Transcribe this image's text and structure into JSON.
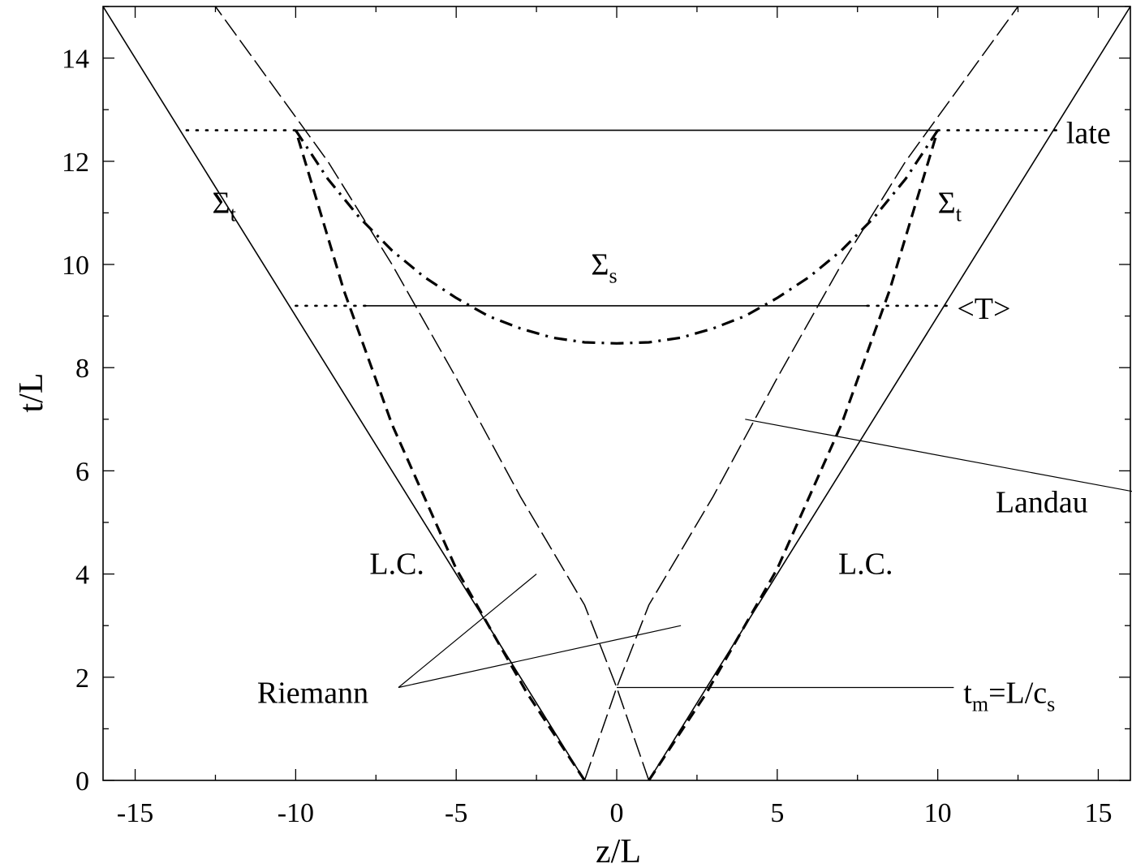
{
  "chart_data": {
    "type": "line",
    "xlabel": "z/L",
    "ylabel": "t/L",
    "xlim": [
      -16,
      16
    ],
    "ylim": [
      0,
      15
    ],
    "xticks": [
      -15,
      -10,
      -5,
      0,
      5,
      10,
      15
    ],
    "yticks": [
      0,
      2,
      4,
      6,
      8,
      10,
      12,
      14
    ],
    "grid": false,
    "series": [
      {
        "id": "lc-left",
        "style": "solid",
        "points": [
          [
            -1,
            0
          ],
          [
            -16,
            15
          ]
        ]
      },
      {
        "id": "lc-right",
        "style": "solid",
        "points": [
          [
            1,
            0
          ],
          [
            16,
            15
          ]
        ]
      },
      {
        "id": "riemann-left-bold",
        "style": "bold-dashed",
        "points": [
          [
            -1,
            0
          ],
          [
            -2.8,
            1.7
          ],
          [
            -5,
            4.1
          ],
          [
            -7,
            6.9
          ],
          [
            -8.5,
            9.5
          ],
          [
            -10,
            12.6
          ]
        ]
      },
      {
        "id": "riemann-right-bold",
        "style": "bold-dashed",
        "points": [
          [
            1,
            0
          ],
          [
            2.8,
            1.7
          ],
          [
            5,
            4.1
          ],
          [
            7,
            6.9
          ],
          [
            8.5,
            9.5
          ],
          [
            10,
            12.6
          ]
        ]
      },
      {
        "id": "landau-left",
        "style": "dashed",
        "points": [
          [
            1,
            0
          ],
          [
            0,
            1.8
          ],
          [
            -1,
            3.4
          ],
          [
            -3,
            5.5
          ],
          [
            -5,
            7.8
          ],
          [
            -7,
            10
          ],
          [
            -9,
            12
          ],
          [
            -12.5,
            15
          ]
        ]
      },
      {
        "id": "landau-right",
        "style": "dashed",
        "points": [
          [
            -1,
            0
          ],
          [
            0,
            1.8
          ],
          [
            1,
            3.4
          ],
          [
            3,
            5.5
          ],
          [
            5,
            7.8
          ],
          [
            7,
            10
          ],
          [
            9,
            12
          ],
          [
            12.5,
            15
          ]
        ]
      },
      {
        "id": "sigma-s",
        "style": "dash-dot",
        "points": [
          [
            -10,
            12.6
          ],
          [
            -9,
            11.66
          ],
          [
            -8,
            10.9
          ],
          [
            -7,
            10.27
          ],
          [
            -6,
            9.76
          ],
          [
            -5,
            9.35
          ],
          [
            -4,
            9.0
          ],
          [
            -3,
            8.76
          ],
          [
            -2,
            8.58
          ],
          [
            -1,
            8.49
          ],
          [
            0,
            8.47
          ],
          [
            1,
            8.49
          ],
          [
            2,
            8.58
          ],
          [
            3,
            8.76
          ],
          [
            4,
            9.0
          ],
          [
            5,
            9.35
          ],
          [
            6,
            9.76
          ],
          [
            7,
            10.27
          ],
          [
            8,
            10.9
          ],
          [
            9,
            11.66
          ],
          [
            10,
            12.6
          ]
        ]
      },
      {
        "id": "late-solid",
        "style": "solid",
        "points": [
          [
            -10,
            12.6
          ],
          [
            10,
            12.6
          ]
        ]
      },
      {
        "id": "late-dotted-left",
        "style": "dotted",
        "points": [
          [
            -13.4,
            12.6
          ],
          [
            -10,
            12.6
          ]
        ]
      },
      {
        "id": "late-dotted-right",
        "style": "dotted",
        "points": [
          [
            10,
            12.6
          ],
          [
            13.8,
            12.6
          ]
        ]
      },
      {
        "id": "avgT-solid",
        "style": "solid",
        "points": [
          [
            -7.8,
            9.2
          ],
          [
            7.8,
            9.2
          ]
        ]
      },
      {
        "id": "avgT-dotted-left",
        "style": "dotted",
        "points": [
          [
            -10,
            9.2
          ],
          [
            -7.8,
            9.2
          ]
        ]
      },
      {
        "id": "avgT-dotted-right",
        "style": "dotted",
        "points": [
          [
            7.8,
            9.2
          ],
          [
            10.5,
            9.2
          ]
        ]
      },
      {
        "id": "pointer-riemann-1",
        "style": "thin",
        "points": [
          [
            -6.8,
            1.8
          ],
          [
            -2.5,
            4.0
          ]
        ]
      },
      {
        "id": "pointer-riemann-2",
        "style": "thin",
        "points": [
          [
            -6.8,
            1.8
          ],
          [
            2,
            3.0
          ]
        ]
      },
      {
        "id": "pointer-landau",
        "style": "thin",
        "points": [
          [
            4,
            7.0
          ],
          [
            17.8,
            5.4
          ]
        ]
      },
      {
        "id": "pointer-tm",
        "style": "thin",
        "points": [
          [
            0,
            1.8
          ],
          [
            10.5,
            1.8
          ]
        ]
      }
    ],
    "annotations": [
      {
        "id": "lc-left",
        "text": "L.C.",
        "x": -7.7,
        "y": 4.0
      },
      {
        "id": "lc-right",
        "text": "L.C.",
        "x": 6.9,
        "y": 4.0
      },
      {
        "id": "sigma-t-left",
        "base": "Σ",
        "sub": "t",
        "x": -12.6,
        "y": 11.0
      },
      {
        "id": "sigma-t-right",
        "base": "Σ",
        "sub": "t",
        "x": 10.0,
        "y": 11.0
      },
      {
        "id": "sigma-s",
        "base": "Σ",
        "sub": "s",
        "x": -0.8,
        "y": 9.8
      },
      {
        "id": "late",
        "text": "late",
        "x": 14.0,
        "y": 12.35
      },
      {
        "id": "avgT",
        "text": "<T>",
        "x": 10.6,
        "y": 8.95
      },
      {
        "id": "landau",
        "text": "Landau",
        "x": 11.8,
        "y": 5.2
      },
      {
        "id": "riemann",
        "text": "Riemann",
        "x": -11.2,
        "y": 1.5
      },
      {
        "id": "tm",
        "parts": [
          "t",
          "m",
          "=L/c",
          "s"
        ],
        "x": 10.8,
        "y": 1.5
      }
    ]
  }
}
